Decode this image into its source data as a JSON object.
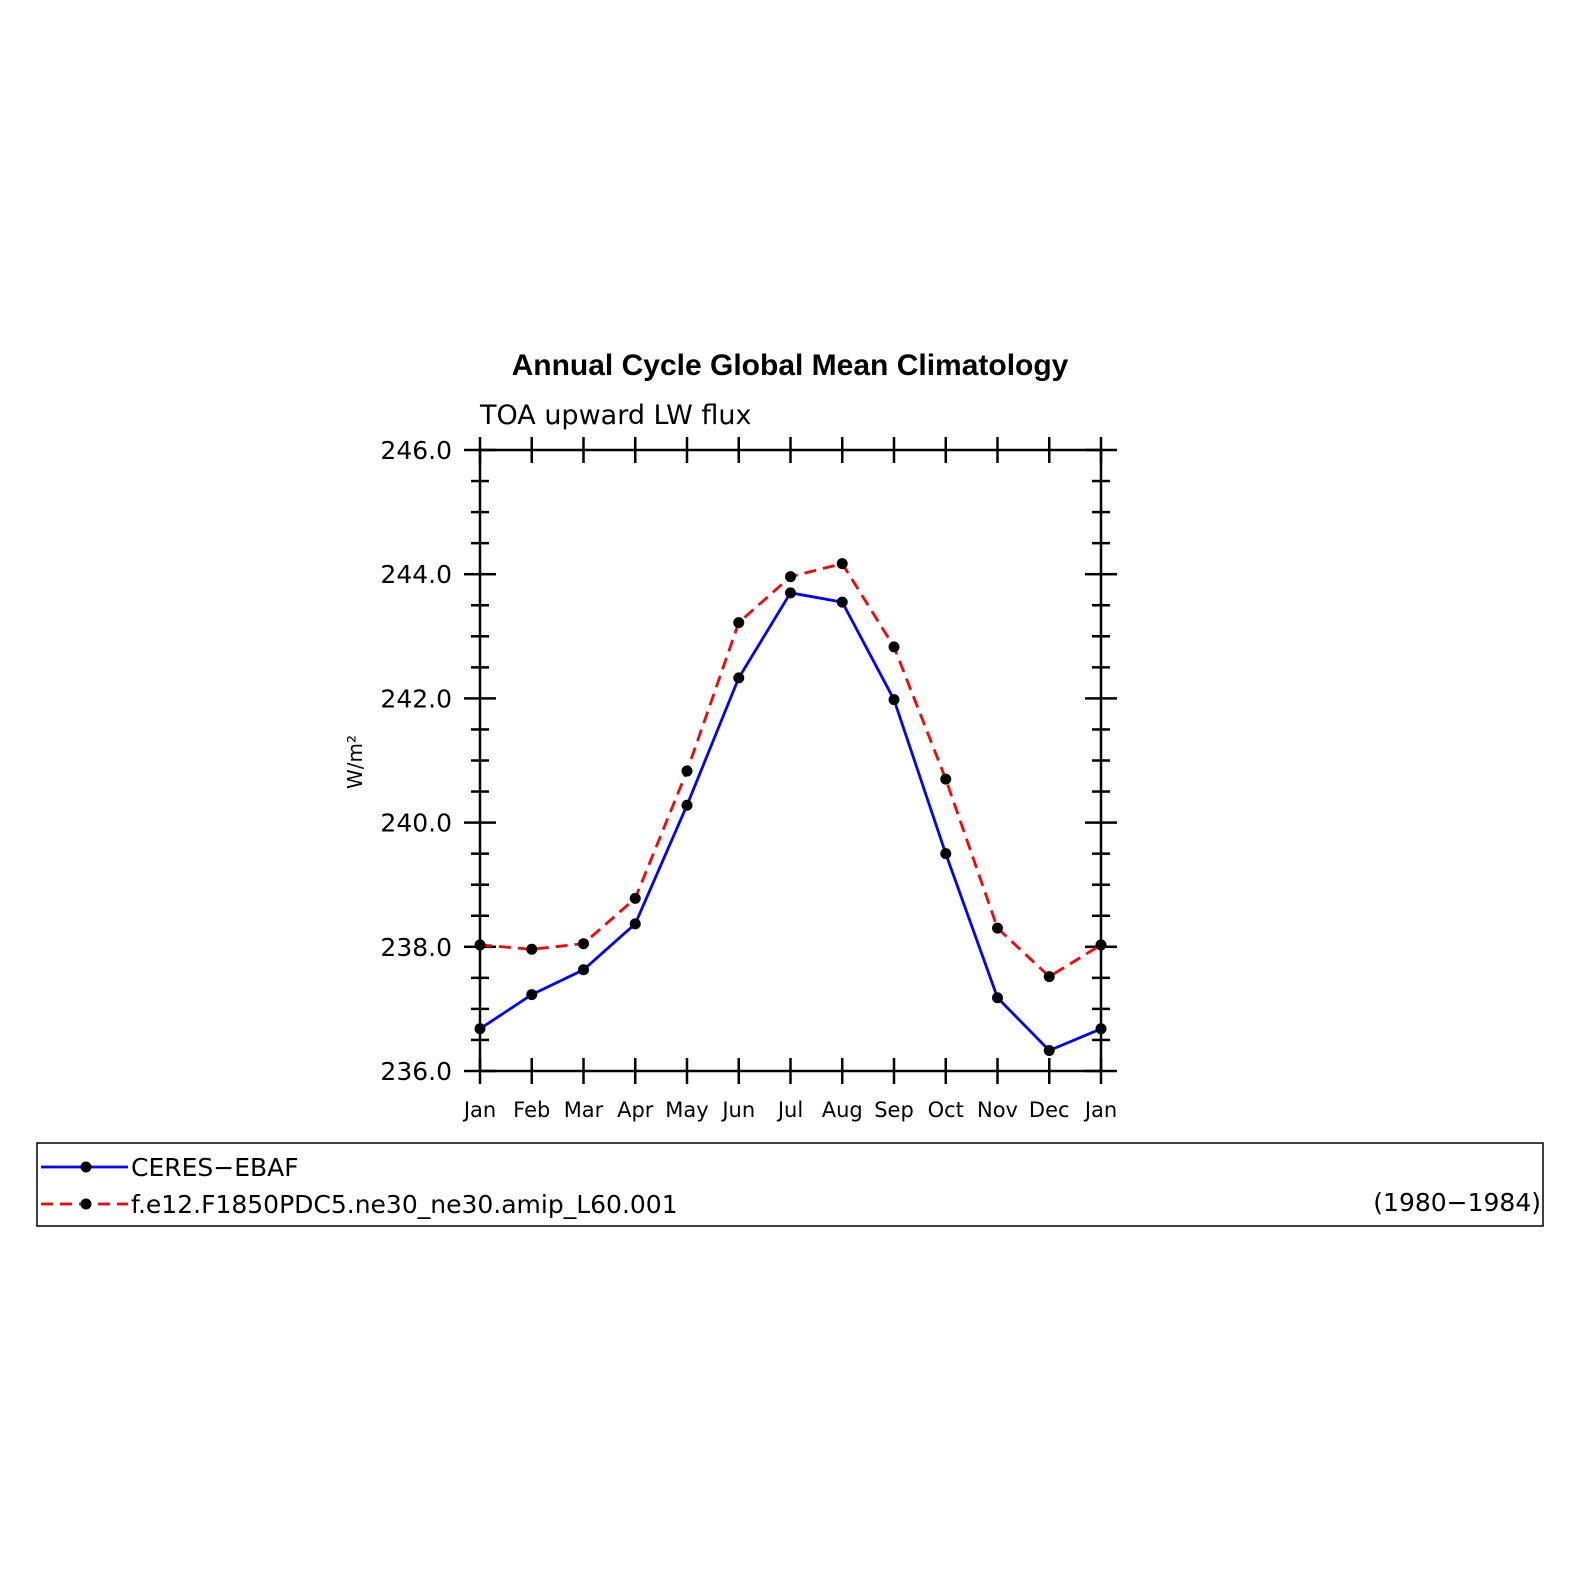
{
  "chart_data": {
    "type": "line",
    "title": "Annual Cycle Global Mean Climatology",
    "subtitle": "TOA upward LW flux",
    "xlabel": "",
    "ylabel": "W/m²",
    "categories": [
      "Jan",
      "Feb",
      "Mar",
      "Apr",
      "May",
      "Jun",
      "Jul",
      "Aug",
      "Sep",
      "Oct",
      "Nov",
      "Dec",
      "Jan"
    ],
    "ylim": [
      236.0,
      246.0
    ],
    "yticks": [
      "236.0",
      "238.0",
      "240.0",
      "242.0",
      "244.0",
      "246.0"
    ],
    "grid": false,
    "legend_placement": "bottom",
    "series": [
      {
        "name": "CERES−EBAF",
        "color": "#0000ff",
        "line_style": "solid",
        "marker": "filled-circle",
        "values": [
          236.68,
          237.23,
          237.63,
          238.37,
          240.28,
          242.33,
          243.7,
          243.55,
          241.98,
          239.5,
          237.18,
          236.33,
          236.68
        ]
      },
      {
        "name": "f.e12.F1850PDC5.ne30_ne30.amip_L60.001",
        "color": "#ff0000",
        "line_style": "dashed",
        "marker": "filled-circle",
        "values": [
          238.03,
          237.96,
          238.05,
          238.78,
          240.83,
          243.22,
          243.96,
          244.17,
          242.83,
          240.7,
          238.3,
          237.52,
          238.03
        ]
      }
    ],
    "legend_note": "(1980−1984)"
  }
}
